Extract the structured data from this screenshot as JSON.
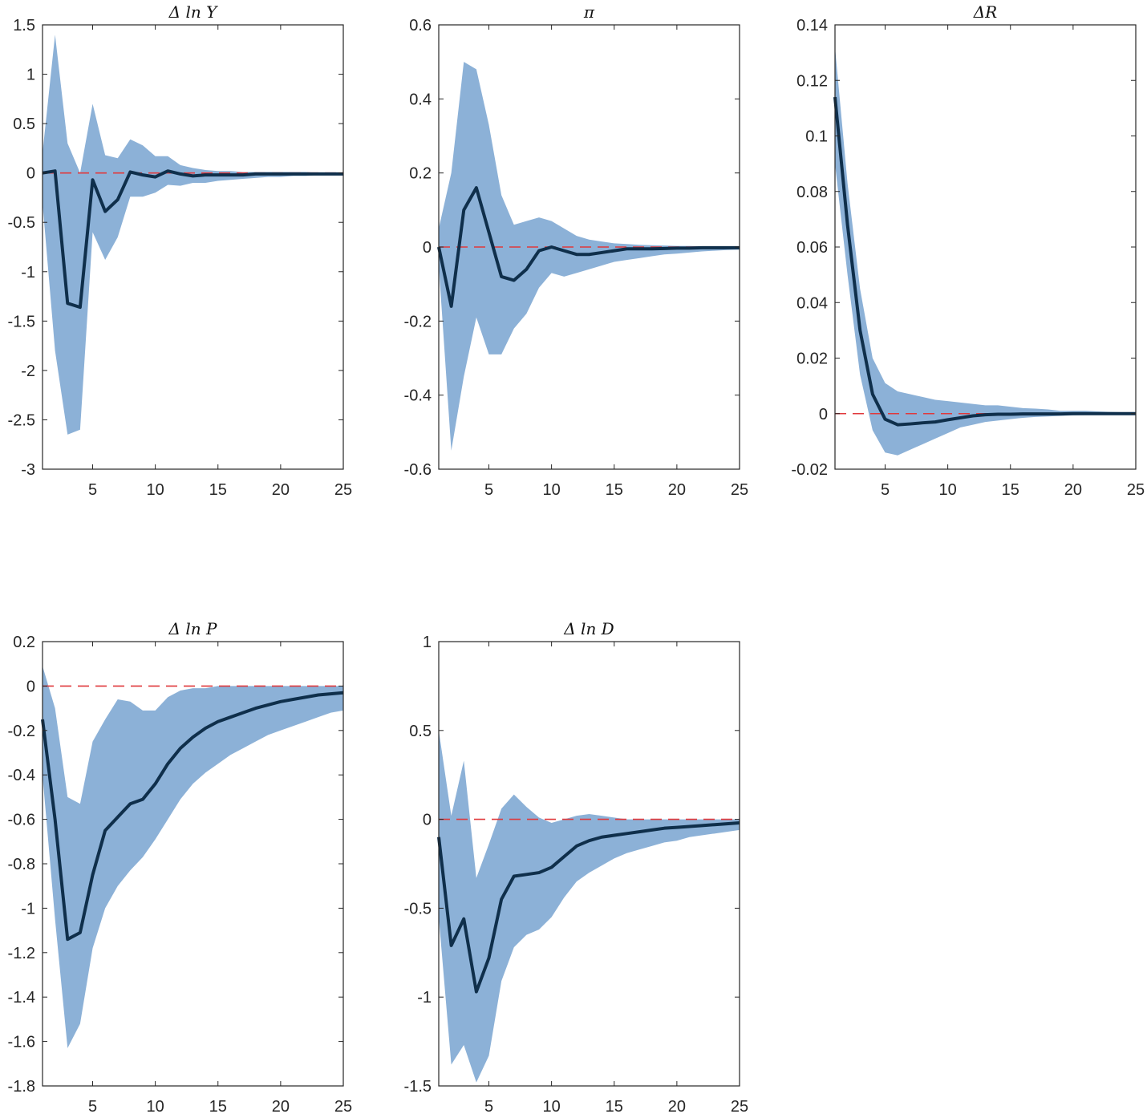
{
  "colors": {
    "band": "#8cb1d7",
    "median_line": "#0f2f4b",
    "zero_line": "#e0393c",
    "axis": "#262626"
  },
  "chart_data": [
    {
      "type": "area",
      "title": "Δ ln Y",
      "xlabel": "",
      "ylabel": "",
      "xlim": [
        1,
        25
      ],
      "ylim": [
        -3,
        1.5
      ],
      "xticks": [
        5,
        10,
        15,
        20,
        25
      ],
      "yticks": [
        -3,
        -2.5,
        -2,
        -1.5,
        -1,
        -0.5,
        0,
        0.5,
        1,
        1.5
      ],
      "zero_line": 0,
      "x": [
        1,
        2,
        3,
        4,
        5,
        6,
        7,
        8,
        9,
        10,
        11,
        12,
        13,
        14,
        15,
        16,
        17,
        18,
        19,
        20,
        21,
        22,
        23,
        24,
        25
      ],
      "median": [
        0.0,
        0.02,
        -1.32,
        -1.36,
        -0.07,
        -0.39,
        -0.27,
        0.01,
        -0.02,
        -0.04,
        0.02,
        -0.01,
        -0.03,
        -0.02,
        -0.02,
        -0.02,
        -0.02,
        -0.01,
        -0.01,
        -0.01,
        -0.01,
        -0.01,
        -0.01,
        -0.01,
        -0.01
      ],
      "upper": [
        0.2,
        1.4,
        0.3,
        0.0,
        0.7,
        0.18,
        0.15,
        0.34,
        0.28,
        0.17,
        0.17,
        0.08,
        0.05,
        0.03,
        0.02,
        0.02,
        0.01,
        0.01,
        0.01,
        0.01,
        0.01,
        0.01,
        0.0,
        0.0,
        0.0
      ],
      "lower": [
        -0.3,
        -1.8,
        -2.65,
        -2.6,
        -0.6,
        -0.88,
        -0.65,
        -0.24,
        -0.24,
        -0.2,
        -0.12,
        -0.13,
        -0.1,
        -0.1,
        -0.08,
        -0.07,
        -0.06,
        -0.05,
        -0.04,
        -0.04,
        -0.03,
        -0.03,
        -0.02,
        -0.02,
        -0.02
      ]
    },
    {
      "type": "area",
      "title": "π",
      "xlabel": "",
      "ylabel": "",
      "xlim": [
        1,
        25
      ],
      "ylim": [
        -0.6,
        0.6
      ],
      "xticks": [
        5,
        10,
        15,
        20,
        25
      ],
      "yticks": [
        -0.6,
        -0.4,
        -0.2,
        0,
        0.2,
        0.4,
        0.6
      ],
      "zero_line": 0,
      "x": [
        1,
        2,
        3,
        4,
        5,
        6,
        7,
        8,
        9,
        10,
        11,
        12,
        13,
        14,
        15,
        16,
        17,
        18,
        19,
        20,
        21,
        22,
        23,
        24,
        25
      ],
      "median": [
        0.0,
        -0.16,
        0.1,
        0.16,
        0.04,
        -0.08,
        -0.09,
        -0.06,
        -0.01,
        0.0,
        -0.01,
        -0.02,
        -0.02,
        -0.015,
        -0.01,
        -0.005,
        -0.005,
        -0.005,
        -0.004,
        -0.003,
        -0.003,
        -0.002,
        -0.002,
        -0.002,
        -0.002
      ],
      "upper": [
        0.05,
        0.2,
        0.5,
        0.48,
        0.33,
        0.14,
        0.06,
        0.07,
        0.08,
        0.07,
        0.05,
        0.03,
        0.02,
        0.015,
        0.01,
        0.008,
        0.006,
        0.005,
        0.004,
        0.003,
        0.003,
        0.002,
        0.002,
        0.002,
        0.002
      ],
      "lower": [
        -0.05,
        -0.55,
        -0.35,
        -0.19,
        -0.29,
        -0.29,
        -0.22,
        -0.18,
        -0.11,
        -0.07,
        -0.08,
        -0.07,
        -0.06,
        -0.05,
        -0.04,
        -0.035,
        -0.03,
        -0.025,
        -0.02,
        -0.018,
        -0.015,
        -0.012,
        -0.01,
        -0.008,
        -0.007
      ]
    },
    {
      "type": "area",
      "title": "ΔR",
      "xlabel": "",
      "ylabel": "",
      "xlim": [
        1,
        25
      ],
      "ylim": [
        -0.02,
        0.14
      ],
      "xticks": [
        5,
        10,
        15,
        20,
        25
      ],
      "yticks": [
        -0.02,
        0,
        0.02,
        0.04,
        0.06,
        0.08,
        0.1,
        0.12,
        0.14
      ],
      "zero_line": 0,
      "x": [
        1,
        2,
        3,
        4,
        5,
        6,
        7,
        8,
        9,
        10,
        11,
        12,
        13,
        14,
        15,
        16,
        17,
        18,
        19,
        20,
        21,
        22,
        23,
        24,
        25
      ],
      "median": [
        0.114,
        0.068,
        0.03,
        0.007,
        -0.002,
        -0.004,
        -0.0037,
        -0.0033,
        -0.003,
        -0.0022,
        -0.0015,
        -0.0008,
        -0.0004,
        -0.0002,
        -0.0002,
        -0.0001,
        -0.0001,
        -0.0001,
        -0.0001,
        0.0,
        0.0,
        0.0,
        0.0,
        0.0,
        0.0
      ],
      "upper": [
        0.132,
        0.083,
        0.045,
        0.02,
        0.011,
        0.008,
        0.007,
        0.006,
        0.005,
        0.0045,
        0.004,
        0.0035,
        0.003,
        0.003,
        0.0025,
        0.002,
        0.0018,
        0.0015,
        0.001,
        0.001,
        0.001,
        0.0008,
        0.0006,
        0.0005,
        0.0004
      ],
      "lower": [
        0.09,
        0.05,
        0.014,
        -0.006,
        -0.014,
        -0.015,
        -0.013,
        -0.011,
        -0.009,
        -0.007,
        -0.005,
        -0.004,
        -0.003,
        -0.0025,
        -0.002,
        -0.0015,
        -0.0012,
        -0.001,
        -0.0008,
        -0.0006,
        -0.0005,
        -0.0004,
        -0.0003,
        -0.0003,
        -0.0002
      ]
    },
    {
      "type": "area",
      "title": "Δ ln P",
      "xlabel": "",
      "ylabel": "",
      "xlim": [
        1,
        25
      ],
      "ylim": [
        -1.8,
        0.2
      ],
      "xticks": [
        5,
        10,
        15,
        20,
        25
      ],
      "yticks": [
        -1.8,
        -1.6,
        -1.4,
        -1.2,
        -1,
        -0.8,
        -0.6,
        -0.4,
        -0.2,
        0,
        0.2
      ],
      "zero_line": 0,
      "x": [
        1,
        2,
        3,
        4,
        5,
        6,
        7,
        8,
        9,
        10,
        11,
        12,
        13,
        14,
        15,
        16,
        17,
        18,
        19,
        20,
        21,
        22,
        23,
        24,
        25
      ],
      "median": [
        -0.15,
        -0.6,
        -1.14,
        -1.11,
        -0.85,
        -0.65,
        -0.59,
        -0.53,
        -0.51,
        -0.44,
        -0.35,
        -0.28,
        -0.23,
        -0.19,
        -0.16,
        -0.14,
        -0.12,
        -0.1,
        -0.085,
        -0.07,
        -0.06,
        -0.05,
        -0.04,
        -0.035,
        -0.03
      ],
      "upper": [
        0.09,
        -0.1,
        -0.5,
        -0.53,
        -0.25,
        -0.15,
        -0.06,
        -0.07,
        -0.11,
        -0.11,
        -0.05,
        -0.02,
        -0.01,
        -0.01,
        0.0,
        0.0,
        0.0,
        0.0,
        0.0,
        0.0,
        0.0,
        0.0,
        0.0,
        0.0,
        0.0
      ],
      "lower": [
        -0.4,
        -1.05,
        -1.63,
        -1.52,
        -1.18,
        -1.0,
        -0.9,
        -0.83,
        -0.77,
        -0.69,
        -0.6,
        -0.51,
        -0.44,
        -0.39,
        -0.35,
        -0.31,
        -0.28,
        -0.25,
        -0.22,
        -0.2,
        -0.18,
        -0.16,
        -0.14,
        -0.12,
        -0.11
      ]
    },
    {
      "type": "area",
      "title": "Δ ln D",
      "xlabel": "",
      "ylabel": "",
      "xlim": [
        1,
        25
      ],
      "ylim": [
        -1.5,
        1
      ],
      "xticks": [
        5,
        10,
        15,
        20,
        25
      ],
      "yticks": [
        -1.5,
        -1,
        -0.5,
        0,
        0.5,
        1
      ],
      "zero_line": 0,
      "x": [
        1,
        2,
        3,
        4,
        5,
        6,
        7,
        8,
        9,
        10,
        11,
        12,
        13,
        14,
        15,
        16,
        17,
        18,
        19,
        20,
        21,
        22,
        23,
        24,
        25
      ],
      "median": [
        -0.1,
        -0.71,
        -0.56,
        -0.97,
        -0.78,
        -0.45,
        -0.32,
        -0.31,
        -0.3,
        -0.27,
        -0.21,
        -0.15,
        -0.12,
        -0.1,
        -0.09,
        -0.08,
        -0.07,
        -0.06,
        -0.05,
        -0.045,
        -0.04,
        -0.035,
        -0.03,
        -0.025,
        -0.02
      ],
      "upper": [
        0.5,
        0.02,
        0.33,
        -0.33,
        -0.14,
        0.06,
        0.14,
        0.07,
        0.01,
        -0.02,
        0.0,
        0.02,
        0.03,
        0.02,
        0.01,
        0.0,
        0.0,
        0.0,
        0.0,
        0.0,
        0.0,
        0.0,
        0.0,
        0.0,
        0.0
      ],
      "lower": [
        -0.55,
        -1.38,
        -1.27,
        -1.48,
        -1.33,
        -0.91,
        -0.72,
        -0.65,
        -0.62,
        -0.55,
        -0.44,
        -0.35,
        -0.3,
        -0.26,
        -0.22,
        -0.19,
        -0.17,
        -0.15,
        -0.13,
        -0.12,
        -0.1,
        -0.09,
        -0.08,
        -0.07,
        -0.06
      ]
    }
  ]
}
